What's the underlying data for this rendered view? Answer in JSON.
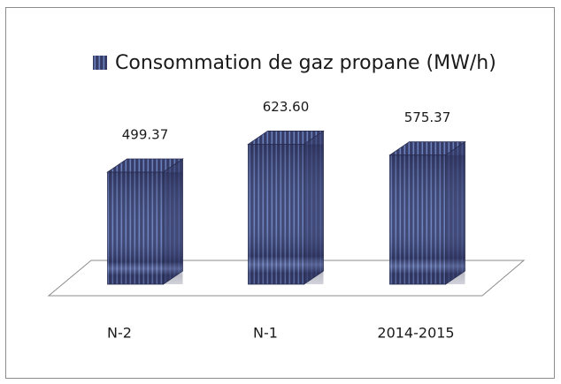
{
  "chart_data": {
    "type": "bar3d",
    "categories": [
      "N-2",
      "N-1",
      "2014-2015"
    ],
    "series": [
      {
        "name": "Consommation de gaz propane (MW/h)",
        "color": "#363c68",
        "values": [
          499.37,
          623.6,
          575.37
        ],
        "value_labels": [
          "499.37",
          "623.60",
          "575.37"
        ]
      }
    ],
    "ylim": [
      0,
      700
    ],
    "legend": "top"
  }
}
